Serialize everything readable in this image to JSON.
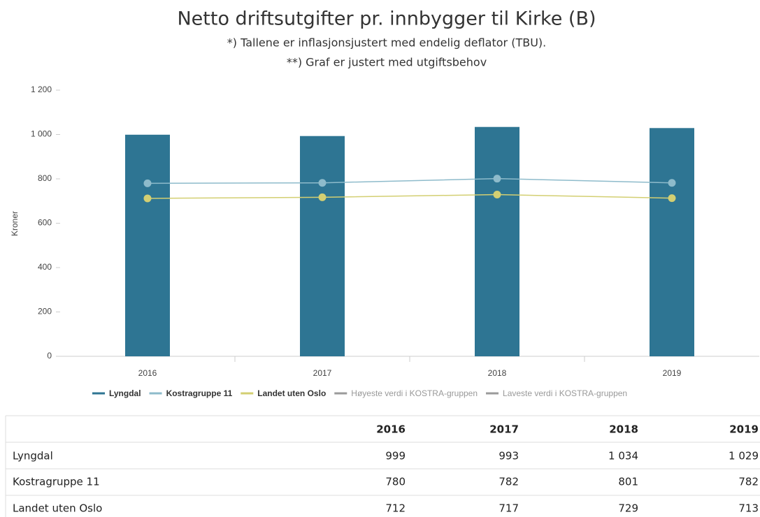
{
  "chart_data": {
    "type": "bar",
    "title": "Netto driftsutgifter pr. innbygger til Kirke (B)",
    "subtitle": [
      "*) Tallene er inflasjonsjustert med endelig deflator (TBU).",
      "**) Graf er justert med utgiftsbehov"
    ],
    "y_label": "Kroner",
    "categories": [
      "2016",
      "2017",
      "2018",
      "2019"
    ],
    "series": [
      {
        "name": "Lyngdal",
        "type": "bar",
        "color": "#2e7593",
        "values": [
          999,
          993,
          1034,
          1029
        ],
        "value_labels": [
          "999",
          "993",
          "1 034",
          "1 029"
        ]
      },
      {
        "name": "Kostragruppe 11",
        "type": "line",
        "color": "#8ebbcb",
        "values": [
          780,
          782,
          801,
          782
        ]
      },
      {
        "name": "Landet uten Oslo",
        "type": "line",
        "color": "#d3cf72",
        "values": [
          712,
          717,
          729,
          713
        ]
      },
      {
        "name": "Høyeste verdi i KOSTRA-gruppen",
        "type": "line",
        "color": "#9a9a9a",
        "hidden": true,
        "values": [
          null,
          null,
          null,
          null
        ]
      },
      {
        "name": "Laveste verdi i KOSTRA-gruppen",
        "type": "line",
        "color": "#9a9a9a",
        "hidden": true,
        "values": [
          null,
          null,
          null,
          null
        ]
      }
    ],
    "ylim": [
      0,
      1200
    ],
    "yticks": [
      0,
      200,
      400,
      600,
      800,
      {
        "value": 1000,
        "label": "1 000"
      },
      {
        "value": 1200,
        "label": "1 200"
      }
    ],
    "grid": false,
    "legend": "bottom",
    "table": true
  }
}
